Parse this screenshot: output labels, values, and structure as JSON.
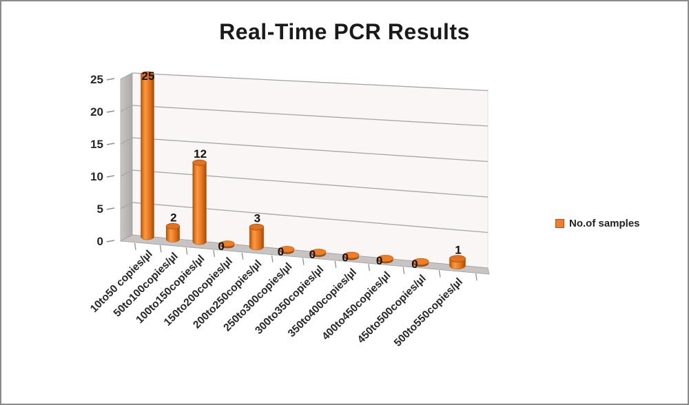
{
  "frame": {
    "background": "#ffffff",
    "border_color": "#8a8a8a"
  },
  "title": {
    "text": "Real-Time PCR Results",
    "color": "#1a1a1a"
  },
  "legend": {
    "label": "No.of samples",
    "swatch_color": "#ED7D31",
    "swatch_border": "#A85510",
    "position": "right"
  },
  "chart_data": {
    "type": "bar",
    "style": "3d-cylinder",
    "title": "Real-Time PCR Results",
    "categories": [
      "10to50 copies/µl",
      "50to100copies/µl",
      "100to150copies/µl",
      "150to200copies/µl",
      "200to250copies/µl",
      "250to300copies/µl",
      "300to350copies/µl",
      "350to400copies/µl",
      "400to450copies/µl",
      "450to500copies/µl",
      "500to550copies/µl"
    ],
    "series": [
      {
        "name": "No.of samples",
        "color": "#ED7D31",
        "values": [
          25,
          2,
          12,
          0,
          3,
          0,
          0,
          0,
          0,
          0,
          1
        ]
      }
    ],
    "data_labels_shown": true,
    "xlabel": "",
    "ylabel": "",
    "ylim": [
      0,
      25
    ],
    "yticks": [
      0,
      5,
      10,
      15,
      20,
      25
    ],
    "grid": true,
    "legend_position": "right",
    "colors": {
      "back_wall": "#faf6f5",
      "side_wall": "#b7b4b4",
      "floor": "#c7c4c3",
      "gridline": "#a0a6a6",
      "tick": "#8f8c8c",
      "axis_text": "#262626",
      "data_label_text": "#111111"
    }
  }
}
